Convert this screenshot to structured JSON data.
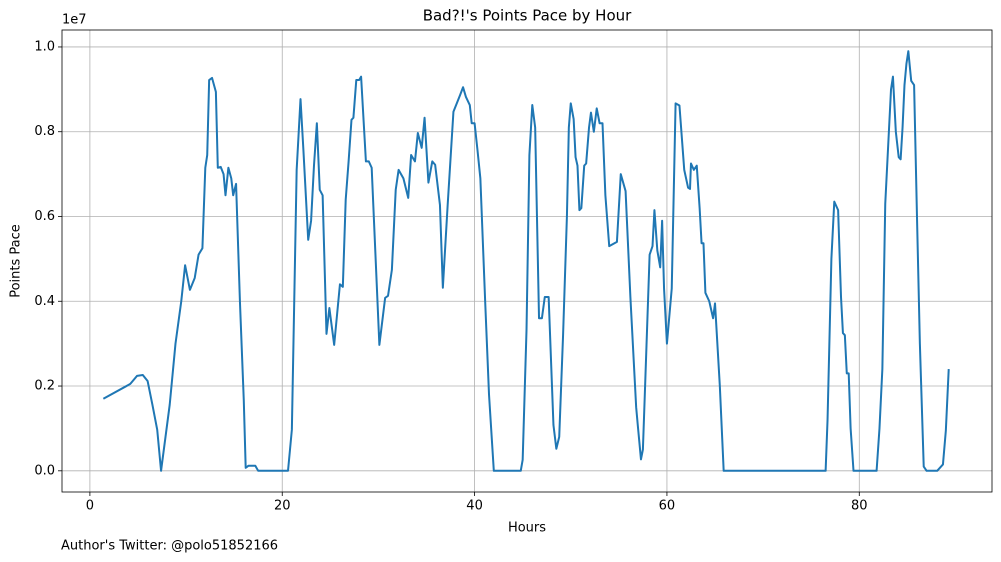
{
  "chart_data": {
    "type": "line",
    "title": "Bad?!'s Points Pace by Hour",
    "xlabel": "Hours",
    "ylabel": "Points Pace",
    "y_offset_label": "1e7",
    "footnote": "Author's Twitter: @polo51852166",
    "color": "#1f77b4",
    "grid": true,
    "xlim": [
      -2.9,
      93.8
    ],
    "ylim": [
      -0.05,
      1.04
    ],
    "xticks": [
      0,
      20,
      40,
      60,
      80
    ],
    "yticks": [
      {
        "value": 0,
        "label": "0.0"
      },
      {
        "value": 0.2,
        "label": "0.2"
      },
      {
        "value": 0.4,
        "label": "0.4"
      },
      {
        "value": 0.6,
        "label": "0.6"
      },
      {
        "value": 0.8,
        "label": "0.8"
      },
      {
        "value": 1,
        "label": "1.0"
      }
    ],
    "x": [
      1.4,
      4.2,
      4.9,
      5.5,
      6.0,
      6.5,
      7.0,
      7.4,
      8.3,
      8.9,
      9.5,
      9.9,
      10.4,
      10.9,
      11.3,
      11.7,
      12.0,
      12.2,
      12.4,
      12.7,
      13.1,
      13.3,
      13.6,
      13.9,
      14.1,
      14.4,
      14.7,
      14.9,
      15.2,
      15.6,
      16.0,
      16.2,
      16.5,
      17.2,
      17.5,
      20.6,
      21.0,
      21.5,
      21.9,
      22.2,
      22.7,
      23.0,
      23.3,
      23.6,
      23.9,
      24.2,
      24.6,
      24.9,
      25.4,
      26.0,
      26.3,
      26.6,
      26.9,
      27.2,
      27.4,
      27.7,
      28.0,
      28.2,
      28.7,
      29.0,
      29.3,
      30.1,
      30.7,
      31.0,
      31.4,
      31.8,
      32.1,
      32.6,
      33.1,
      33.4,
      33.8,
      34.1,
      34.5,
      34.8,
      35.2,
      35.6,
      35.9,
      36.4,
      36.7,
      37.2,
      37.8,
      38.5,
      38.8,
      39.1,
      39.5,
      39.7,
      40.0,
      40.3,
      40.6,
      41.1,
      41.5,
      42.0,
      44.8,
      45.0,
      45.4,
      45.7,
      46.0,
      46.3,
      46.7,
      47.0,
      47.3,
      47.7,
      48.2,
      48.5,
      48.8,
      49.2,
      49.6,
      49.8,
      50.0,
      50.3,
      50.5,
      50.7,
      50.9,
      51.1,
      51.4,
      51.6,
      51.9,
      52.1,
      52.4,
      52.7,
      53.0,
      53.3,
      53.6,
      54.0,
      54.8,
      55.2,
      55.7,
      56.2,
      56.8,
      57.0,
      57.3,
      57.5,
      57.7,
      58.2,
      58.5,
      58.7,
      59.0,
      59.3,
      59.5,
      59.7,
      60.0,
      60.5,
      60.9,
      61.3,
      61.8,
      62.2,
      62.4,
      62.5,
      62.8,
      63.1,
      63.4,
      63.6,
      63.8,
      64.0,
      64.4,
      64.8,
      65.0,
      65.5,
      65.9,
      76.5,
      76.7,
      77.1,
      77.4,
      77.8,
      78.1,
      78.3,
      78.5,
      78.7,
      78.9,
      79.1,
      79.4,
      81.8,
      82.1,
      82.4,
      82.7,
      83.1,
      83.3,
      83.5,
      83.8,
      84.1,
      84.3,
      84.5,
      84.7,
      84.9,
      85.1,
      85.4,
      85.7,
      86.0,
      86.3,
      86.7,
      87.0,
      88.1,
      88.5,
      88.7,
      89.0,
      89.3
    ],
    "values": [
      0.17,
      0.205,
      0.224,
      0.226,
      0.212,
      0.156,
      0.097,
      0,
      0.156,
      0.3,
      0.4,
      0.485,
      0.427,
      0.455,
      0.51,
      0.525,
      0.715,
      0.745,
      0.922,
      0.927,
      0.894,
      0.715,
      0.717,
      0.7,
      0.65,
      0.715,
      0.69,
      0.65,
      0.677,
      0.4,
      0.167,
      0.007,
      0.012,
      0.012,
      0,
      0,
      0.097,
      0.71,
      0.877,
      0.757,
      0.545,
      0.59,
      0.72,
      0.82,
      0.663,
      0.65,
      0.323,
      0.384,
      0.297,
      0.44,
      0.434,
      0.64,
      0.73,
      0.828,
      0.833,
      0.922,
      0.922,
      0.93,
      0.73,
      0.73,
      0.715,
      0.297,
      0.408,
      0.413,
      0.474,
      0.663,
      0.71,
      0.69,
      0.644,
      0.745,
      0.73,
      0.797,
      0.762,
      0.833,
      0.68,
      0.73,
      0.722,
      0.627,
      0.432,
      0.627,
      0.847,
      0.887,
      0.905,
      0.882,
      0.863,
      0.82,
      0.82,
      0.757,
      0.69,
      0.4,
      0.18,
      0,
      0,
      0.026,
      0.333,
      0.745,
      0.863,
      0.81,
      0.36,
      0.36,
      0.41,
      0.41,
      0.108,
      0.052,
      0.08,
      0.32,
      0.6,
      0.81,
      0.867,
      0.83,
      0.74,
      0.72,
      0.615,
      0.62,
      0.72,
      0.725,
      0.81,
      0.845,
      0.8,
      0.855,
      0.82,
      0.82,
      0.65,
      0.53,
      0.54,
      0.7,
      0.66,
      0.41,
      0.15,
      0.1,
      0.027,
      0.05,
      0.18,
      0.51,
      0.53,
      0.615,
      0.52,
      0.48,
      0.59,
      0.43,
      0.3,
      0.43,
      0.867,
      0.862,
      0.71,
      0.668,
      0.665,
      0.725,
      0.71,
      0.72,
      0.62,
      0.537,
      0.537,
      0.42,
      0.4,
      0.36,
      0.395,
      0.2,
      0,
      0,
      0.12,
      0.5,
      0.635,
      0.615,
      0.41,
      0.325,
      0.32,
      0.23,
      0.23,
      0.1,
      0,
      0,
      0.1,
      0.24,
      0.63,
      0.81,
      0.9,
      0.93,
      0.8,
      0.74,
      0.735,
      0.81,
      0.91,
      0.96,
      0.99,
      0.92,
      0.91,
      0.6,
      0.3,
      0.01,
      0,
      0,
      0.01,
      0.015,
      0.095,
      0.24
    ]
  }
}
